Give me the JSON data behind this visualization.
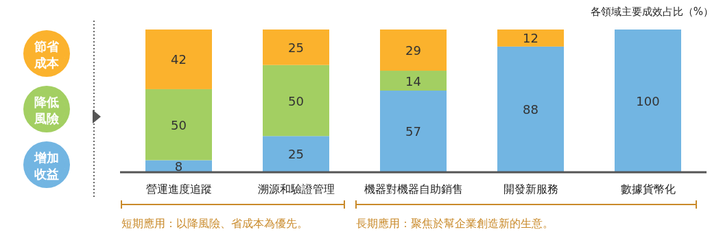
{
  "chart_data": {
    "type": "bar",
    "stacked": true,
    "title": "各領域主要成效占比（%）",
    "categories": [
      "營運進度追蹤",
      "溯源和驗證管理",
      "機器對機器自助銷售",
      "開發新服務",
      "數據貨幣化"
    ],
    "series": [
      {
        "name": "增加收益",
        "color": "#72b5e2",
        "values": [
          8,
          25,
          57,
          88,
          100
        ]
      },
      {
        "name": "降低風險",
        "color": "#a3cf62",
        "values": [
          50,
          50,
          14,
          null,
          null
        ]
      },
      {
        "name": "節省成本",
        "color": "#fbb22d",
        "values": [
          42,
          25,
          29,
          12,
          null
        ]
      }
    ],
    "data_labels": true,
    "legend": "left",
    "annotations": [
      "短期應用：以降風險、省成本為優先。",
      "長期應用：聚焦於幫企業創造新的生意。"
    ]
  }
}
